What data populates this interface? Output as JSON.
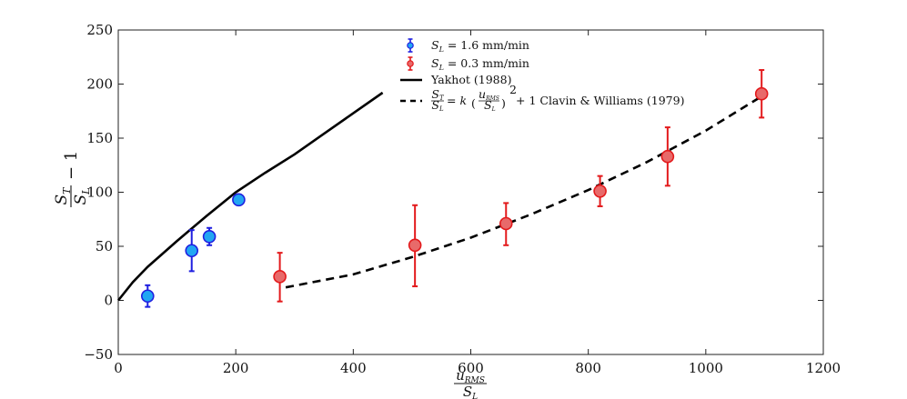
{
  "chart_data": {
    "type": "scatter",
    "xlabel": {
      "num": "u",
      "num_sub": "RMS",
      "den": "S",
      "den_sub": "L"
    },
    "ylabel": {
      "num": "S",
      "num_sub": "T",
      "den": "S",
      "den_sub": "L",
      "suffix": "− 1"
    },
    "xlim": [
      0,
      1200
    ],
    "ylim": [
      -50,
      250
    ],
    "xticks": [
      0,
      200,
      400,
      600,
      800,
      1000,
      1200
    ],
    "yticks": [
      -50,
      0,
      50,
      100,
      150,
      200,
      250
    ],
    "grid": false,
    "legend_position": "top-center",
    "series": [
      {
        "name": "S_L = 1.6 mm/min",
        "legend": {
          "sym": "S",
          "sub": "L",
          "rest": " = 1.6 mm/min"
        },
        "kind": "errorbar-scatter",
        "color": "#1f1fe0",
        "fill": "#22a6f2",
        "points": [
          {
            "x": 50,
            "y": 4,
            "lo": -6,
            "hi": 14
          },
          {
            "x": 125,
            "y": 46,
            "lo": 27,
            "hi": 65
          },
          {
            "x": 155,
            "y": 59,
            "lo": 51,
            "hi": 67
          },
          {
            "x": 205,
            "y": 93,
            "lo": 91,
            "hi": 95
          }
        ]
      },
      {
        "name": "S_L = 0.3 mm/min",
        "legend": {
          "sym": "S",
          "sub": "L",
          "rest": " = 0.3 mm/min"
        },
        "kind": "errorbar-scatter",
        "color": "#e31a1c",
        "fill": "#e86a6a",
        "points": [
          {
            "x": 275,
            "y": 22,
            "lo": -1,
            "hi": 44
          },
          {
            "x": 505,
            "y": 51,
            "lo": 13,
            "hi": 88
          },
          {
            "x": 660,
            "y": 71,
            "lo": 51,
            "hi": 90
          },
          {
            "x": 820,
            "y": 101,
            "lo": 87,
            "hi": 115
          },
          {
            "x": 935,
            "y": 133,
            "lo": 106,
            "hi": 160
          },
          {
            "x": 1095,
            "y": 191,
            "lo": 169,
            "hi": 213
          }
        ]
      },
      {
        "name": "Yakhot (1988)",
        "legend": {
          "text": "Yakhot (1988)"
        },
        "kind": "line",
        "style": "solid",
        "color": "#000000",
        "x": [
          0,
          25,
          50,
          100,
          150,
          200,
          250,
          300,
          350,
          400,
          450
        ],
        "y": [
          0,
          17,
          31,
          55,
          78,
          100,
          118,
          135,
          154,
          173,
          192
        ]
      },
      {
        "name": "Clavin & Williams (1979)",
        "legend": {
          "frac_num": "S",
          "frac_num_sub": "T",
          "frac_den": "S",
          "frac_den_sub": "L",
          "eq": " = k",
          "inner_num": "u",
          "inner_num_sub": "RMS",
          "inner_den": "S",
          "inner_den_sub": "L",
          "exp": "2",
          "tail": " + 1 Clavin & Williams (1979)"
        },
        "kind": "line",
        "style": "dashed",
        "color": "#000000",
        "x": [
          285,
          400,
          500,
          600,
          700,
          800,
          900,
          1000,
          1090
        ],
        "y": [
          12,
          24,
          40,
          58,
          79,
          102,
          128,
          157,
          187
        ]
      }
    ]
  }
}
